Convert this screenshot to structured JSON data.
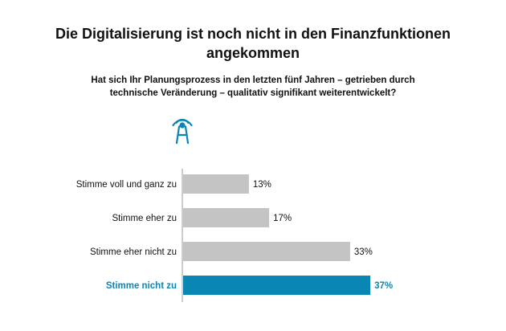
{
  "title_lines": [
    "Die Digitalisierung ist noch nicht in den Finanzfunktionen",
    "angekommen"
  ],
  "subtitle_lines": [
    "Hat sich Ihr Planungsprozess in den letzten fünf Jahren – getrieben durch",
    "technische Veränderung – qualitativ signifikant weiterentwickelt?"
  ],
  "icon": "radio-tower-icon",
  "colors": {
    "bar": "#c4c4c4",
    "highlight": "#0a86b4",
    "axis": "#9a9a9a",
    "text": "#111111"
  },
  "chart_data": {
    "type": "bar",
    "orientation": "horizontal",
    "categories": [
      "Stimme voll und ganz zu",
      "Stimme eher zu",
      "Stimme eher nicht zu",
      "Stimme nicht zu"
    ],
    "values": [
      13,
      17,
      33,
      37
    ],
    "value_labels": [
      "13%",
      "17%",
      "33%",
      "37%"
    ],
    "highlighted_category": "Stimme nicht zu",
    "unit": "%",
    "xlim": [
      0,
      37
    ],
    "grid": false,
    "legend": "none"
  }
}
